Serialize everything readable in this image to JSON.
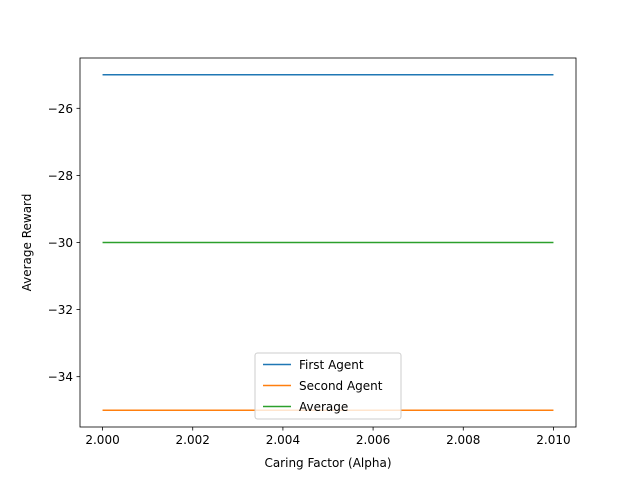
{
  "chart_data": {
    "type": "line",
    "title": "",
    "xlabel": "Caring Factor (Alpha)",
    "ylabel": "Average Reward",
    "x": [
      2.0,
      2.01
    ],
    "xlim": [
      1.9995,
      2.0105
    ],
    "ylim": [
      -35.5,
      -24.5
    ],
    "x_ticks": [
      2.0,
      2.002,
      2.004,
      2.006,
      2.008,
      2.01
    ],
    "x_tick_labels": [
      "2.000",
      "2.002",
      "2.004",
      "2.006",
      "2.008",
      "2.010"
    ],
    "y_ticks": [
      -34,
      -32,
      -30,
      -28,
      -26
    ],
    "y_tick_labels": [
      "−34",
      "−32",
      "−30",
      "−28",
      "−26"
    ],
    "series": [
      {
        "name": "First Agent",
        "values": [
          -25,
          -25
        ],
        "color": "#1f77b4"
      },
      {
        "name": "Second Agent",
        "values": [
          -35,
          -35
        ],
        "color": "#ff7f0e"
      },
      {
        "name": "Average",
        "values": [
          -30,
          -30
        ],
        "color": "#2ca02c"
      }
    ],
    "legend": {
      "placement": "lower center"
    },
    "grid": false
  }
}
